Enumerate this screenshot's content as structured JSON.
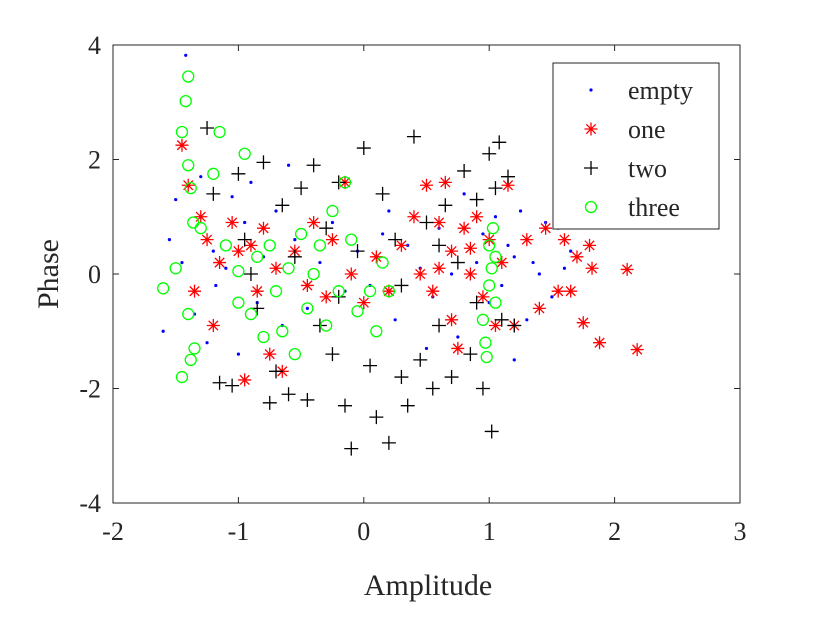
{
  "chart_data": {
    "type": "scatter",
    "title": "",
    "xlabel": "Amplitude",
    "ylabel": "Phase",
    "xlim": [
      -2,
      3
    ],
    "ylim": [
      -4,
      4
    ],
    "x_ticks": [
      "-2",
      "-1",
      "0",
      "1",
      "2",
      "3"
    ],
    "y_ticks": [
      "-4",
      "-2",
      "0",
      "2",
      "4"
    ],
    "grid": false,
    "legend_position": "top-right",
    "series": [
      {
        "name": "empty",
        "marker": "dot",
        "color": "#0000ff",
        "points": [
          [
            -1.42,
            3.82
          ],
          [
            -1.55,
            0.6
          ],
          [
            -1.6,
            -1.0
          ],
          [
            -1.5,
            1.3
          ],
          [
            -1.45,
            0.2
          ],
          [
            -1.3,
            1.7
          ],
          [
            -1.25,
            -1.2
          ],
          [
            -1.2,
            0.4
          ],
          [
            -1.18,
            -0.2
          ],
          [
            -1.05,
            1.35
          ],
          [
            -1.0,
            -1.4
          ],
          [
            -0.95,
            0.9
          ],
          [
            -0.85,
            -0.5
          ],
          [
            -0.8,
            0.3
          ],
          [
            -0.7,
            1.1
          ],
          [
            -0.65,
            -0.9
          ],
          [
            -0.55,
            0.6
          ],
          [
            -0.45,
            -0.6
          ],
          [
            -0.35,
            0.2
          ],
          [
            -0.25,
            0.9
          ],
          [
            -0.15,
            -0.3
          ],
          [
            -0.05,
            0.4
          ],
          [
            0.05,
            -0.2
          ],
          [
            0.15,
            0.7
          ],
          [
            0.25,
            -0.8
          ],
          [
            0.35,
            0.5
          ],
          [
            0.45,
            0.1
          ],
          [
            0.55,
            -0.4
          ],
          [
            0.6,
            0.8
          ],
          [
            0.7,
            0.0
          ],
          [
            0.75,
            -1.1
          ],
          [
            0.8,
            1.4
          ],
          [
            0.9,
            0.2
          ],
          [
            1.0,
            -0.5
          ],
          [
            1.05,
            1.0
          ],
          [
            1.1,
            -0.2
          ],
          [
            1.15,
            0.5
          ],
          [
            1.2,
            0.3
          ],
          [
            1.25,
            1.1
          ],
          [
            1.3,
            -0.8
          ],
          [
            1.35,
            0.2
          ],
          [
            1.4,
            0.0
          ],
          [
            1.45,
            0.9
          ],
          [
            1.5,
            -0.4
          ],
          [
            1.55,
            0.8
          ],
          [
            1.6,
            0.1
          ],
          [
            1.65,
            0.4
          ],
          [
            -1.35,
            -0.7
          ],
          [
            -1.1,
            0.1
          ],
          [
            -0.9,
            1.6
          ],
          [
            0.2,
            1.1
          ],
          [
            0.5,
            -1.3
          ],
          [
            1.2,
            -1.5
          ],
          [
            -0.6,
            1.9
          ],
          [
            0.95,
            0.7
          ]
        ]
      },
      {
        "name": "one",
        "marker": "asterisk",
        "color": "#ff0000",
        "points": [
          [
            -1.45,
            2.25
          ],
          [
            -1.4,
            1.55
          ],
          [
            -1.3,
            1.0
          ],
          [
            -1.25,
            0.6
          ],
          [
            -1.35,
            -0.3
          ],
          [
            -1.2,
            -0.9
          ],
          [
            -1.15,
            0.2
          ],
          [
            -1.05,
            0.9
          ],
          [
            -0.95,
            -1.85
          ],
          [
            -0.9,
            0.5
          ],
          [
            -0.85,
            -0.3
          ],
          [
            -0.8,
            0.8
          ],
          [
            -0.75,
            -1.4
          ],
          [
            -0.7,
            0.1
          ],
          [
            -0.65,
            -1.7
          ],
          [
            -0.55,
            0.4
          ],
          [
            -0.45,
            -0.2
          ],
          [
            -0.4,
            0.9
          ],
          [
            -0.3,
            -0.4
          ],
          [
            -0.25,
            0.6
          ],
          [
            -0.15,
            1.6
          ],
          [
            -0.1,
            0.0
          ],
          [
            0.0,
            -0.5
          ],
          [
            0.1,
            0.3
          ],
          [
            0.2,
            -0.3
          ],
          [
            0.3,
            0.5
          ],
          [
            0.45,
            0.0
          ],
          [
            0.5,
            1.55
          ],
          [
            0.55,
            -0.3
          ],
          [
            0.6,
            0.9
          ],
          [
            0.65,
            1.6
          ],
          [
            0.7,
            0.4
          ],
          [
            0.75,
            -1.3
          ],
          [
            0.8,
            0.8
          ],
          [
            0.85,
            0.0
          ],
          [
            0.9,
            1.0
          ],
          [
            0.95,
            -0.4
          ],
          [
            1.0,
            0.6
          ],
          [
            1.05,
            -0.9
          ],
          [
            1.1,
            0.2
          ],
          [
            1.15,
            1.55
          ],
          [
            1.2,
            -0.9
          ],
          [
            1.3,
            0.6
          ],
          [
            1.4,
            -0.6
          ],
          [
            1.45,
            0.8
          ],
          [
            1.55,
            -0.3
          ],
          [
            1.6,
            0.6
          ],
          [
            1.65,
            -0.3
          ],
          [
            1.7,
            0.3
          ],
          [
            1.75,
            -0.85
          ],
          [
            1.8,
            0.5
          ],
          [
            1.82,
            0.1
          ],
          [
            1.88,
            -1.2
          ],
          [
            2.1,
            0.08
          ],
          [
            2.18,
            -1.32
          ],
          [
            -1.0,
            0.4
          ],
          [
            0.4,
            1.0
          ],
          [
            0.7,
            -0.8
          ],
          [
            0.85,
            0.45
          ],
          [
            0.6,
            0.1
          ]
        ]
      },
      {
        "name": "two",
        "marker": "plus",
        "color": "#000000",
        "points": [
          [
            -1.25,
            2.55
          ],
          [
            -1.2,
            1.4
          ],
          [
            -1.15,
            -1.9
          ],
          [
            -1.05,
            -1.95
          ],
          [
            -1.0,
            1.75
          ],
          [
            -0.95,
            0.6
          ],
          [
            -0.85,
            -0.6
          ],
          [
            -0.8,
            1.95
          ],
          [
            -0.75,
            -2.25
          ],
          [
            -0.7,
            -1.7
          ],
          [
            -0.65,
            1.2
          ],
          [
            -0.6,
            -2.1
          ],
          [
            -0.55,
            0.3
          ],
          [
            -0.5,
            1.5
          ],
          [
            -0.45,
            -2.2
          ],
          [
            -0.4,
            1.9
          ],
          [
            -0.35,
            -0.9
          ],
          [
            -0.3,
            0.8
          ],
          [
            -0.25,
            -1.4
          ],
          [
            -0.2,
            1.6
          ],
          [
            -0.15,
            -2.3
          ],
          [
            -0.1,
            -3.05
          ],
          [
            -0.05,
            0.4
          ],
          [
            0.0,
            2.2
          ],
          [
            0.05,
            -1.6
          ],
          [
            0.1,
            -2.5
          ],
          [
            0.15,
            1.4
          ],
          [
            0.2,
            -2.95
          ],
          [
            0.25,
            0.6
          ],
          [
            0.3,
            -1.8
          ],
          [
            0.35,
            -2.3
          ],
          [
            0.4,
            2.4
          ],
          [
            0.45,
            -1.5
          ],
          [
            0.5,
            0.9
          ],
          [
            0.55,
            -2.0
          ],
          [
            0.6,
            -0.9
          ],
          [
            0.65,
            1.2
          ],
          [
            0.7,
            -1.8
          ],
          [
            0.75,
            0.2
          ],
          [
            0.8,
            1.8
          ],
          [
            0.85,
            -1.4
          ],
          [
            0.9,
            1.3
          ],
          [
            0.95,
            -2.0
          ],
          [
            1.0,
            2.1
          ],
          [
            1.02,
            -2.75
          ],
          [
            1.05,
            1.5
          ],
          [
            1.08,
            2.3
          ],
          [
            1.1,
            -0.8
          ],
          [
            1.15,
            1.7
          ],
          [
            1.2,
            -0.9
          ],
          [
            -0.9,
            0.0
          ],
          [
            0.3,
            -0.2
          ],
          [
            0.6,
            0.5
          ],
          [
            -0.2,
            -0.4
          ],
          [
            0.9,
            -0.5
          ]
        ]
      },
      {
        "name": "three",
        "marker": "circle",
        "color": "#00ff00",
        "points": [
          [
            -1.6,
            -0.25
          ],
          [
            -1.5,
            0.1
          ],
          [
            -1.45,
            2.48
          ],
          [
            -1.42,
            3.02
          ],
          [
            -1.4,
            3.45
          ],
          [
            -1.4,
            1.9
          ],
          [
            -1.38,
            1.5
          ],
          [
            -1.36,
            0.9
          ],
          [
            -1.35,
            -1.3
          ],
          [
            -1.38,
            -1.5
          ],
          [
            -1.45,
            -1.8
          ],
          [
            -1.4,
            -0.7
          ],
          [
            -1.2,
            1.75
          ],
          [
            -1.15,
            2.48
          ],
          [
            -1.1,
            0.5
          ],
          [
            -1.0,
            -0.5
          ],
          [
            -0.95,
            2.1
          ],
          [
            -0.9,
            -0.7
          ],
          [
            -0.85,
            0.3
          ],
          [
            -0.8,
            -1.1
          ],
          [
            -0.75,
            0.5
          ],
          [
            -0.7,
            -0.3
          ],
          [
            -0.65,
            -1.0
          ],
          [
            -0.6,
            0.1
          ],
          [
            -0.55,
            -1.4
          ],
          [
            -0.5,
            0.7
          ],
          [
            -0.45,
            -0.6
          ],
          [
            -0.4,
            0.0
          ],
          [
            -0.35,
            0.5
          ],
          [
            -0.3,
            -0.9
          ],
          [
            -0.25,
            1.1
          ],
          [
            -0.2,
            -0.3
          ],
          [
            -0.15,
            1.6
          ],
          [
            -0.1,
            0.6
          ],
          [
            -0.05,
            -0.65
          ],
          [
            0.05,
            -0.3
          ],
          [
            0.1,
            -1.0
          ],
          [
            0.15,
            0.2
          ],
          [
            0.2,
            -0.3
          ],
          [
            0.95,
            -0.8
          ],
          [
            0.97,
            -1.2
          ],
          [
            1.0,
            0.5
          ],
          [
            1.0,
            -0.2
          ],
          [
            1.02,
            0.1
          ],
          [
            1.03,
            0.8
          ],
          [
            1.05,
            -0.5
          ],
          [
            1.05,
            0.3
          ],
          [
            0.98,
            -1.45
          ],
          [
            -1.3,
            0.8
          ],
          [
            -1.0,
            0.05
          ]
        ]
      }
    ]
  }
}
